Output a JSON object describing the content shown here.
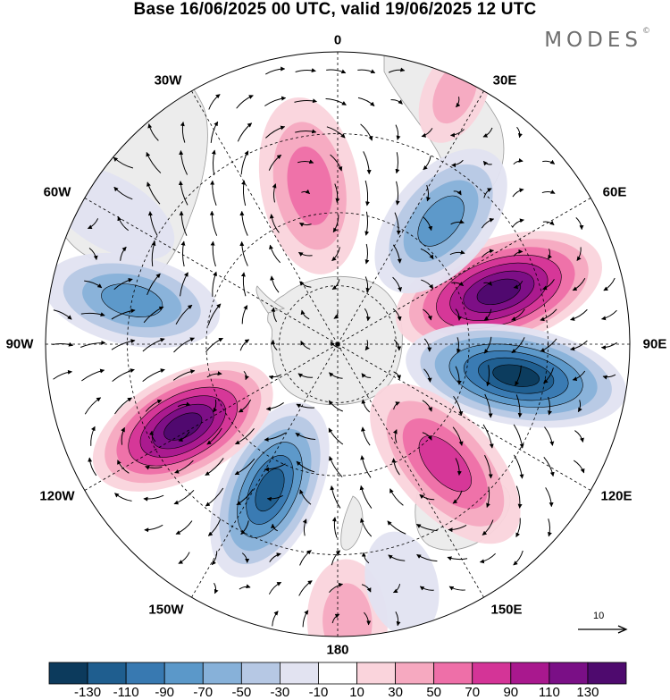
{
  "title": "Base 16/06/2025 00 UTC, valid 19/06/2025 12 UTC",
  "logo": {
    "text": "MODES",
    "mark": "©"
  },
  "longitude_labels": {
    "n0": "0",
    "e30": "30E",
    "e60": "60E",
    "e90": "90E",
    "e120": "120E",
    "e150": "150E",
    "s180": "180",
    "w150": "150W",
    "w120": "120W",
    "w90": "90W",
    "w60": "60W",
    "w30": "30W"
  },
  "reference_vector": {
    "label": "10"
  },
  "colorbar": {
    "labels": [
      "-130",
      "-110",
      "-90",
      "-70",
      "-50",
      "-30",
      "-10",
      "10",
      "30",
      "50",
      "70",
      "90",
      "110",
      "130"
    ],
    "colors": [
      "#0c3a5c",
      "#1f5e8f",
      "#3879b1",
      "#5b98c9",
      "#87b1d9",
      "#b6c8e4",
      "#e2e3f1",
      "#ffffff",
      "#fad4dc",
      "#f6a9c0",
      "#ee6fa8",
      "#d43497",
      "#a9188e",
      "#7a0f86",
      "#4e0a6e"
    ]
  },
  "map": {
    "projection": "polar stereographic (south pole)",
    "land_color": "#ececec",
    "coastline_color": "#9a9a9a",
    "graticule": "dashed"
  },
  "chart_data": {
    "type": "contour_map",
    "field": "anomaly (shaded) with vector wind arrows",
    "contour_levels": [
      -130,
      -110,
      -90,
      -70,
      -50,
      -30,
      -10,
      10,
      30,
      50,
      70,
      90,
      110,
      130
    ],
    "anomaly_centres": [
      {
        "lon_deg": 75,
        "sign": "positive",
        "peak_approx": 130
      },
      {
        "lon_deg": 100,
        "sign": "negative",
        "peak_approx": -130
      },
      {
        "lon_deg": 135,
        "sign": "positive",
        "peak_approx": 70
      },
      {
        "lon_deg": -150,
        "sign": "negative",
        "peak_approx": -110
      },
      {
        "lon_deg": -115,
        "sign": "positive",
        "peak_approx": 130
      },
      {
        "lon_deg": -80,
        "sign": "negative",
        "peak_approx": -70
      },
      {
        "lon_deg": -10,
        "sign": "positive",
        "peak_approx": 50
      },
      {
        "lon_deg": 40,
        "sign": "negative",
        "peak_approx": -70
      },
      {
        "lon_deg": 180,
        "sign": "positive",
        "peak_approx": 30
      }
    ]
  }
}
